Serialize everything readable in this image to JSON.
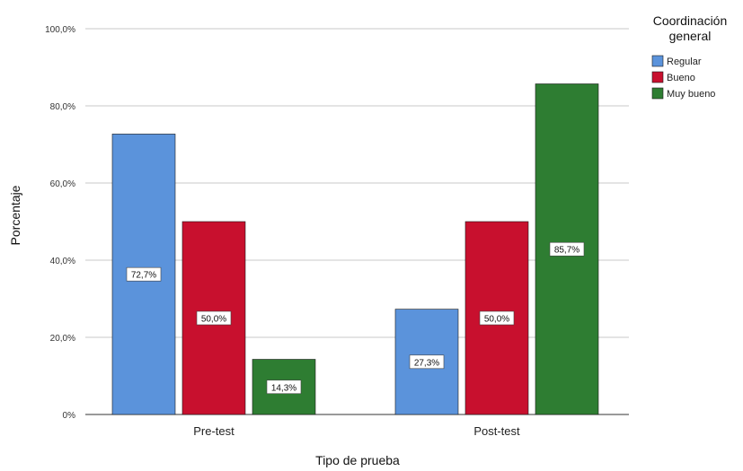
{
  "chart_data": {
    "type": "bar",
    "xlabel": "Tipo de prueba",
    "ylabel": "Porcentaje",
    "ylim": [
      0,
      100
    ],
    "yticks": [
      0,
      20,
      40,
      60,
      80,
      100
    ],
    "ytick_labels": [
      "0%",
      "20,0%",
      "40,0%",
      "60,0%",
      "80,0%",
      "100,0%"
    ],
    "categories": [
      "Pre-test",
      "Post-test"
    ],
    "legend": {
      "title": "Coordinación general",
      "position": "right"
    },
    "grid": true,
    "series": [
      {
        "name": "Regular",
        "color": "#5b93db",
        "values": [
          72.7,
          27.3
        ],
        "labels": [
          "72,7%",
          "27,3%"
        ]
      },
      {
        "name": "Bueno",
        "color": "#c8102e",
        "values": [
          50.0,
          50.0
        ],
        "labels": [
          "50,0%",
          "50,0%"
        ]
      },
      {
        "name": "Muy bueno",
        "color": "#2e7d32",
        "values": [
          14.3,
          85.7
        ],
        "labels": [
          "14,3%",
          "85,7%"
        ]
      }
    ]
  }
}
